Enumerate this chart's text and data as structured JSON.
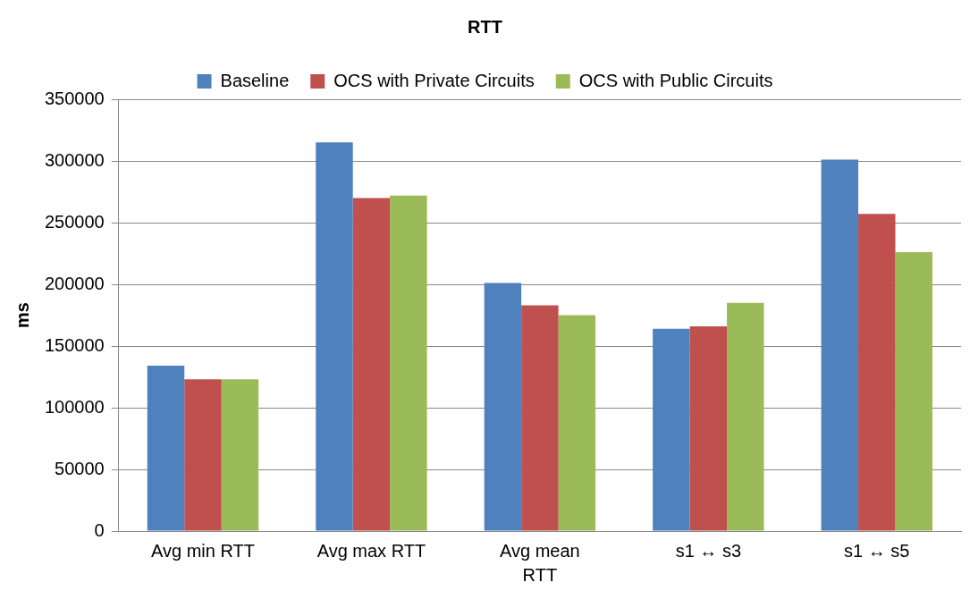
{
  "chart_data": {
    "type": "bar",
    "title": "RTT",
    "xlabel": "RTT",
    "ylabel": "ms",
    "categories": [
      "Avg min RTT",
      "Avg max RTT",
      "Avg mean",
      "s1 ↔ s3",
      "s1 ↔ s5"
    ],
    "series": [
      {
        "name": "Baseline",
        "color": "#4f81bd",
        "values": [
          134000,
          315000,
          201000,
          164000,
          301000
        ]
      },
      {
        "name": "OCS with Private Circuits",
        "color": "#c0504d",
        "values": [
          123000,
          270000,
          183000,
          166000,
          257000
        ]
      },
      {
        "name": "OCS with Public Circuits",
        "color": "#9bbb59",
        "values": [
          123000,
          272000,
          175000,
          185000,
          226000
        ]
      }
    ],
    "ylim": [
      0,
      350000
    ],
    "yticks": [
      0,
      50000,
      100000,
      150000,
      200000,
      250000,
      300000,
      350000
    ],
    "grid": "y",
    "legend": "top"
  }
}
